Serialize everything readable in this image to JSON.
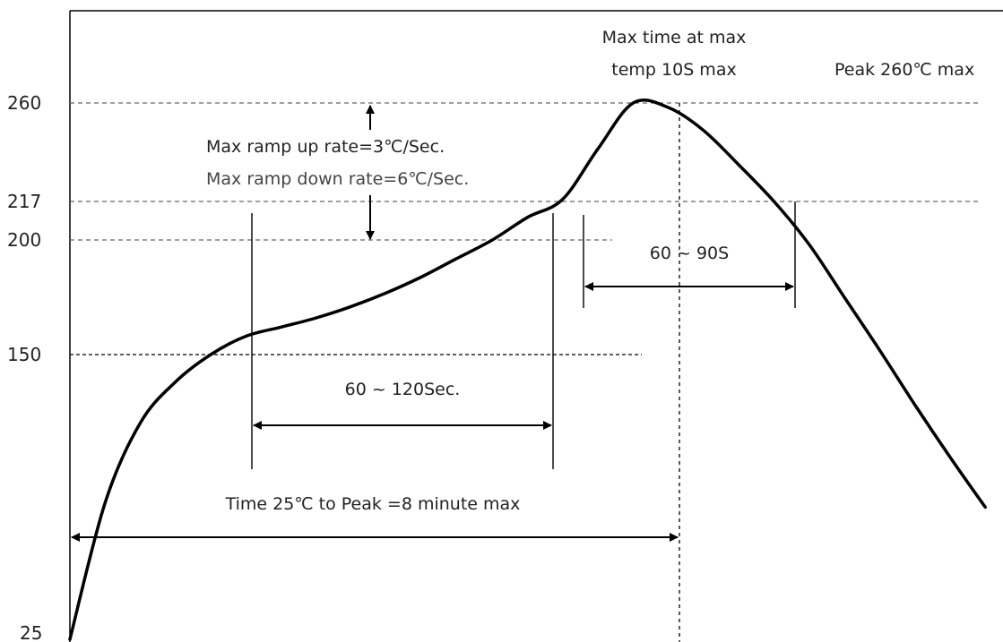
{
  "chart_data": {
    "type": "line",
    "ylabels": [
      "260",
      "217",
      "200",
      "150",
      "25"
    ],
    "y_ticks": [
      260,
      217,
      200,
      150,
      25
    ],
    "series": [
      {
        "x": [
          0,
          0.5,
          1,
          1.5,
          2,
          2.5,
          3,
          3.5,
          4,
          4.5,
          5,
          5.5,
          6,
          6.5,
          7,
          7.5,
          8,
          8.5,
          9,
          9.5,
          10,
          10.5,
          11,
          11.5,
          12,
          12.5,
          13
        ],
        "values": [
          25,
          85,
          120,
          138,
          150,
          158,
          162,
          166,
          171,
          177,
          184,
          192,
          200,
          210,
          218,
          240,
          260,
          258,
          248,
          233,
          217,
          198,
          175,
          152,
          128,
          105,
          83
        ]
      }
    ],
    "annotations": {
      "peak_time_label_line1": "Max time at max",
      "peak_time_label_line2": "temp 10S max",
      "peak_label": "Peak 260℃ max",
      "ramp_up": "Max ramp up rate=3℃/Sec.",
      "ramp_down": "Max ramp down rate=6℃/Sec.",
      "above_217": "60 ~ 90S",
      "preheat": "60 ~ 120Sec.",
      "total_time": "Time 25℃ to Peak =8 minute max"
    }
  }
}
